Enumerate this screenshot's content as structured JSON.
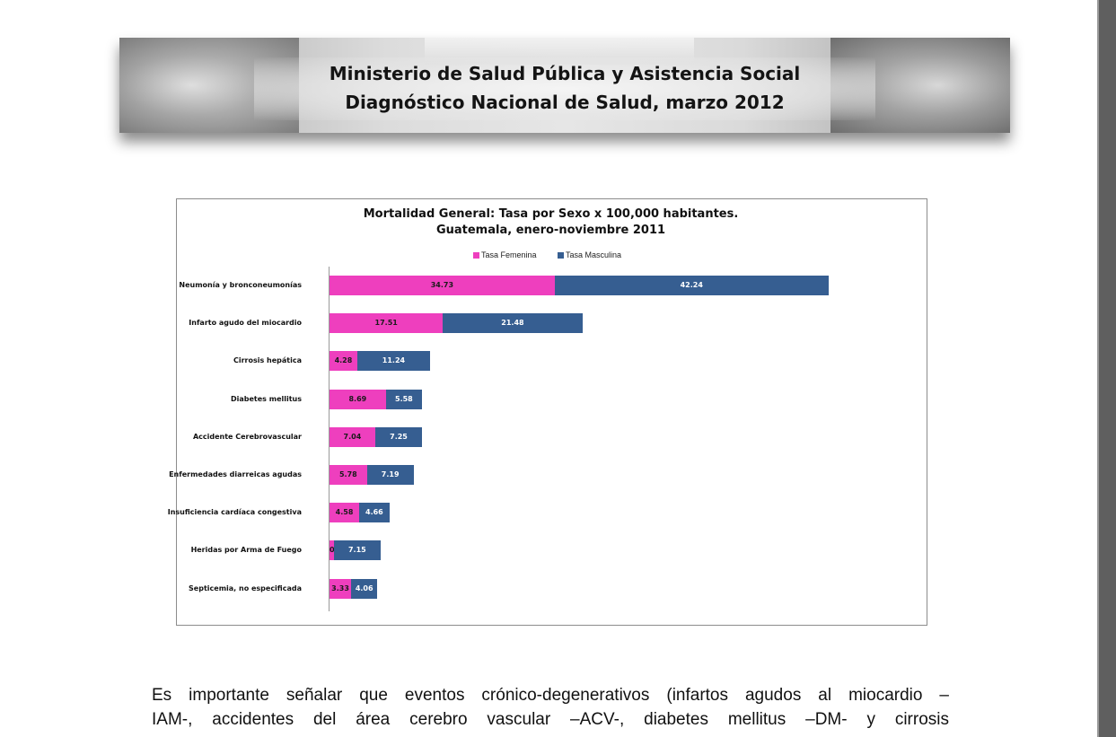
{
  "header": {
    "line1": "Ministerio de Salud Pública y Asistencia Social",
    "line2": "Diagnóstico Nacional de Salud, marzo 2012"
  },
  "chart_data": {
    "type": "bar",
    "orientation": "horizontal",
    "stacked": true,
    "title": "Mortalidad General: Tasa  por Sexo x 100,000 habitantes.",
    "subtitle": "Guatemala, enero-noviembre 2011",
    "legend_position": "top",
    "categories": [
      "Neumonía y bronconeumonías",
      "Infarto agudo del miocardio",
      "Cirrosis hepática",
      "Diabetes mellitus",
      "Accidente Cerebrovascular",
      "Enfermedades diarreicas  agudas",
      "Insuficiencia cardíaca  congestiva",
      "Heridas por Arma de Fuego",
      "Septicemia, no especificada"
    ],
    "series": [
      {
        "name": "Tasa Femenina",
        "color": "#ee3fbe",
        "values": [
          34.73,
          17.51,
          4.28,
          8.69,
          7.04,
          5.78,
          4.58,
          0.7,
          3.33
        ],
        "labels": [
          "34.73",
          "17.51",
          "4.28",
          "8.69",
          "7.04",
          "5.78",
          "4.58",
          "0.70",
          "3.33"
        ]
      },
      {
        "name": "Tasa Masculina",
        "color": "#365e91",
        "values": [
          42.24,
          21.48,
          11.24,
          5.58,
          7.25,
          7.19,
          4.66,
          7.15,
          4.06
        ],
        "labels": [
          "42.24",
          "21.48",
          "11.24",
          "5.58",
          "7.25",
          "7.19",
          "4.66",
          "7.15",
          "4.06"
        ]
      }
    ],
    "xlim": [
      0,
      80
    ],
    "grid": false
  },
  "body": {
    "line1": "Es importante señalar que eventos crónico-degenerativos (infartos agudos al miocardio –",
    "line2": "IAM-, accidentes del área cerebro vascular –ACV-, diabetes mellitus –DM- y cirrosis"
  }
}
